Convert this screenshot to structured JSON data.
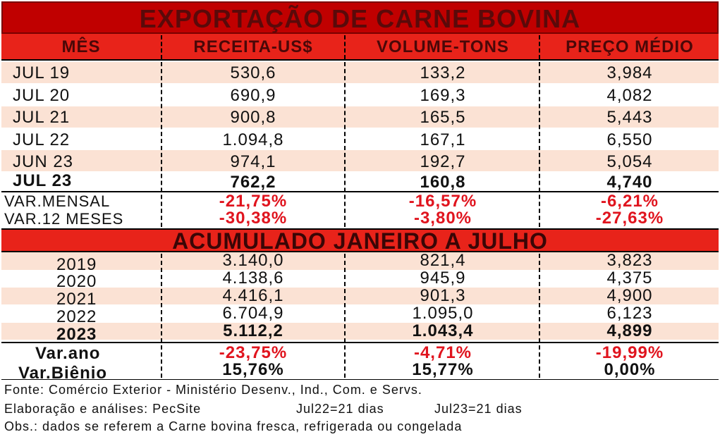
{
  "title": "EXPORTAÇÃO DE CARNE BOVINA",
  "headers": [
    "MÊS",
    "RECEITA-US$",
    "VOLUME-TONS",
    "PREÇO MÉDIO"
  ],
  "monthly_rows": [
    {
      "label": "JUL 19",
      "receita": "530,6",
      "volume": "133,2",
      "preco": "3,984",
      "bold": false
    },
    {
      "label": "JUL 20",
      "receita": "690,9",
      "volume": "169,3",
      "preco": "4,082",
      "bold": false
    },
    {
      "label": "JUL 21",
      "receita": "900,8",
      "volume": "165,5",
      "preco": "5,443",
      "bold": false
    },
    {
      "label": "JUL 22",
      "receita": "1.094,8",
      "volume": "167,1",
      "preco": "6,550",
      "bold": false
    },
    {
      "label": "JUN 23",
      "receita": "974,1",
      "volume": "192,7",
      "preco": "5,054",
      "bold": false
    },
    {
      "label": "JUL 23",
      "receita": "762,2",
      "volume": "160,8",
      "preco": "4,740",
      "bold": true
    }
  ],
  "monthly_variations": [
    {
      "label": "VAR.MENSAL",
      "receita": "-21,75%",
      "volume": "-16,57%",
      "preco": "-6,21%"
    },
    {
      "label": "VAR.12 MESES",
      "receita": "-30,38%",
      "volume": "-3,80%",
      "preco": "-27,63%"
    }
  ],
  "section_title": "ACUMULADO JANEIRO A JULHO",
  "accumulated_rows": [
    {
      "label": "2019",
      "receita": "3.140,0",
      "volume": "821,4",
      "preco": "3,823",
      "bold": false
    },
    {
      "label": "2020",
      "receita": "4.138,6",
      "volume": "945,9",
      "preco": "4,375",
      "bold": false
    },
    {
      "label": "2021",
      "receita": "4.416,1",
      "volume": "901,3",
      "preco": "4,900",
      "bold": false
    },
    {
      "label": "2022",
      "receita": "6.704,9",
      "volume": "1.095,0",
      "preco": "6,123",
      "bold": false
    },
    {
      "label": "2023",
      "receita": "5.112,2",
      "volume": "1.043,4",
      "preco": "4,899",
      "bold": true
    }
  ],
  "accumulated_variations": [
    {
      "label": "Var.ano",
      "receita": "-23,75%",
      "volume": "-4,71%",
      "preco": "-19,99%",
      "red": true
    },
    {
      "label": "Var.Biênio",
      "receita": "15,76%",
      "volume": "15,77%",
      "preco": "0,00%",
      "red": false
    }
  ],
  "footer": {
    "source": "Fonte: Comércio Exterior - Ministério Desenv., Ind., Com. e Servs.",
    "elaboration": "Elaboração e análises: PecSite",
    "days_jul22": "Jul22=21 dias",
    "days_jul23": "Jul23=21 dias",
    "obs": "Obs.: dados se referem a Carne bovina fresca, refrigerada ou congelada"
  },
  "colors": {
    "title_bg": "#c00000",
    "header_bg": "#e8231a",
    "band_bg": "#fbe2d4",
    "negative": "#e0141e"
  }
}
